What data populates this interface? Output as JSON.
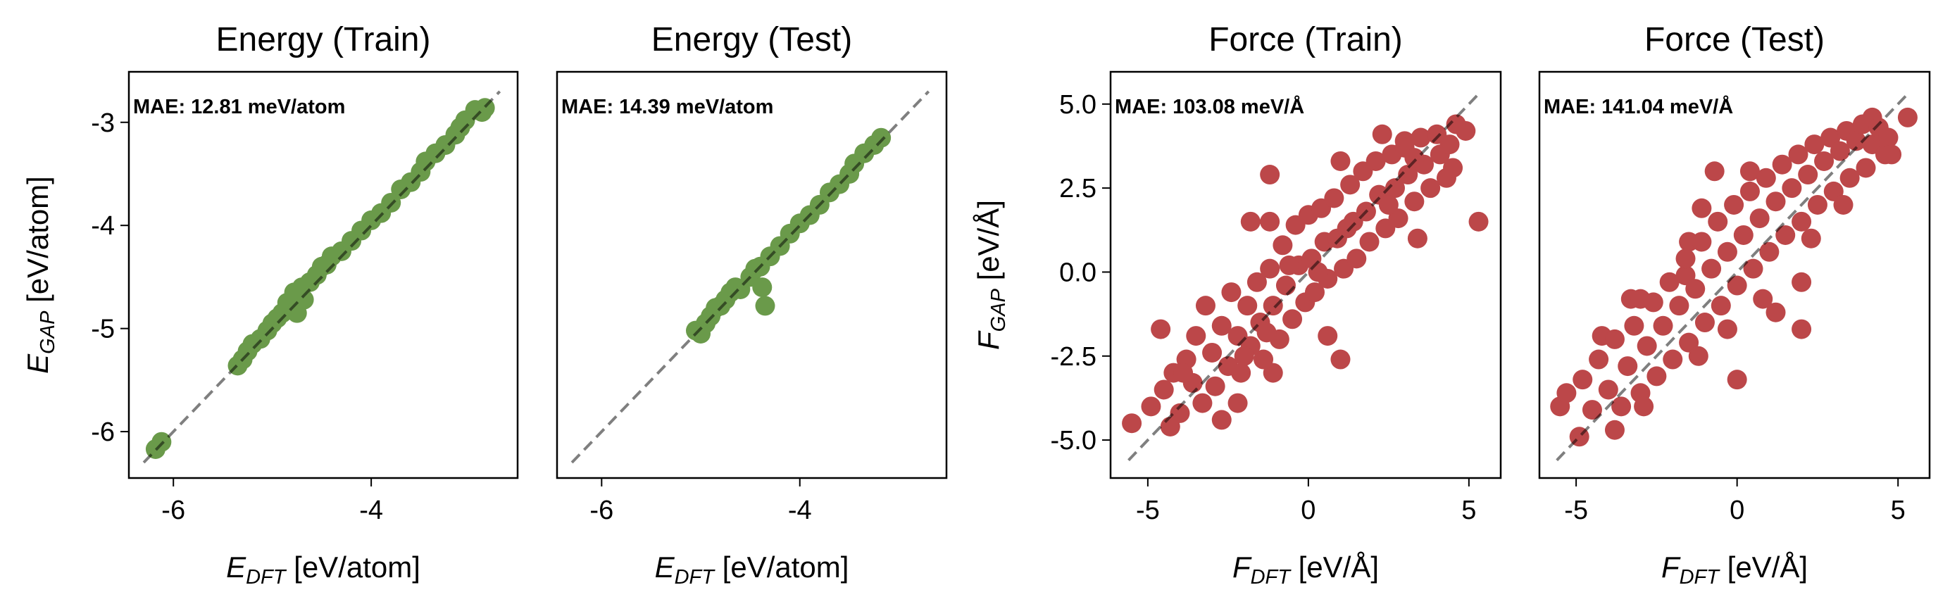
{
  "chart_data": [
    {
      "type": "scatter",
      "title": "Energy (Train)",
      "annotation": "MAE: 12.81 meV/atom",
      "xlabel": {
        "main": "E",
        "sub": "DFT",
        "unit": " [eV/atom]"
      },
      "ylabel": {
        "main": "E",
        "sub": "GAP",
        "unit": " [eV/atom]"
      },
      "xlim": [
        -6.45,
        -2.52
      ],
      "ylim": [
        -6.45,
        -2.51
      ],
      "xticks": [
        -6,
        -4
      ],
      "xtick_labels": [
        "-6",
        "-4"
      ],
      "yticks": [
        -6,
        -5,
        -4,
        -3
      ],
      "ytick_labels": [
        "-6",
        "-5",
        "-4",
        "-3"
      ],
      "show_yticks": true,
      "color": "#6a9a4a",
      "diagonal": [
        -6.3,
        -2.7
      ],
      "points": [
        [
          -6.18,
          -6.17
        ],
        [
          -6.12,
          -6.1
        ],
        [
          -5.35,
          -5.36
        ],
        [
          -5.3,
          -5.3
        ],
        [
          -5.25,
          -5.22
        ],
        [
          -5.2,
          -5.15
        ],
        [
          -5.12,
          -5.1
        ],
        [
          -5.05,
          -5.02
        ],
        [
          -5.0,
          -4.95
        ],
        [
          -4.95,
          -4.9
        ],
        [
          -4.9,
          -4.85
        ],
        [
          -4.85,
          -4.75
        ],
        [
          -4.8,
          -4.8
        ],
        [
          -4.78,
          -4.65
        ],
        [
          -4.75,
          -4.85
        ],
        [
          -4.7,
          -4.6
        ],
        [
          -4.68,
          -4.72
        ],
        [
          -4.62,
          -4.55
        ],
        [
          -4.55,
          -4.48
        ],
        [
          -4.5,
          -4.4
        ],
        [
          -4.45,
          -4.38
        ],
        [
          -4.4,
          -4.3
        ],
        [
          -4.3,
          -4.25
        ],
        [
          -4.2,
          -4.15
        ],
        [
          -4.1,
          -4.05
        ],
        [
          -4.0,
          -3.95
        ],
        [
          -3.9,
          -3.88
        ],
        [
          -3.8,
          -3.78
        ],
        [
          -3.7,
          -3.65
        ],
        [
          -3.6,
          -3.58
        ],
        [
          -3.5,
          -3.48
        ],
        [
          -3.45,
          -3.38
        ],
        [
          -3.35,
          -3.3
        ],
        [
          -3.25,
          -3.22
        ],
        [
          -3.15,
          -3.12
        ],
        [
          -3.1,
          -3.05
        ],
        [
          -3.05,
          -2.98
        ],
        [
          -2.95,
          -2.88
        ],
        [
          -2.88,
          -2.9
        ],
        [
          -2.85,
          -2.86
        ]
      ]
    },
    {
      "type": "scatter",
      "title": "Energy (Test)",
      "annotation": "MAE: 14.39 meV/atom",
      "xlabel": {
        "main": "E",
        "sub": "DFT",
        "unit": " [eV/atom]"
      },
      "ylabel": null,
      "xlim": [
        -6.45,
        -2.52
      ],
      "ylim": [
        -6.45,
        -2.51
      ],
      "xticks": [
        -6,
        -4
      ],
      "xtick_labels": [
        "-6",
        "-4"
      ],
      "yticks": [],
      "ytick_labels": [],
      "show_yticks": false,
      "color": "#6a9a4a",
      "diagonal": [
        -6.3,
        -2.7
      ],
      "points": [
        [
          -5.05,
          -5.02
        ],
        [
          -5.0,
          -5.05
        ],
        [
          -4.95,
          -4.95
        ],
        [
          -4.9,
          -4.88
        ],
        [
          -4.85,
          -4.8
        ],
        [
          -4.8,
          -4.78
        ],
        [
          -4.75,
          -4.72
        ],
        [
          -4.7,
          -4.65
        ],
        [
          -4.65,
          -4.6
        ],
        [
          -4.6,
          -4.62
        ],
        [
          -4.5,
          -4.5
        ],
        [
          -4.45,
          -4.42
        ],
        [
          -4.4,
          -4.4
        ],
        [
          -4.35,
          -4.78
        ],
        [
          -4.38,
          -4.6
        ],
        [
          -4.3,
          -4.3
        ],
        [
          -4.2,
          -4.2
        ],
        [
          -4.1,
          -4.08
        ],
        [
          -4.0,
          -3.98
        ],
        [
          -3.9,
          -3.9
        ],
        [
          -3.8,
          -3.8
        ],
        [
          -3.7,
          -3.68
        ],
        [
          -3.6,
          -3.6
        ],
        [
          -3.5,
          -3.5
        ],
        [
          -3.45,
          -3.4
        ],
        [
          -3.35,
          -3.3
        ],
        [
          -3.25,
          -3.22
        ],
        [
          -3.18,
          -3.15
        ]
      ]
    },
    {
      "type": "scatter",
      "title": "Force (Train)",
      "annotation": "MAE: 103.08 meV/Å",
      "xlabel": {
        "main": "F",
        "sub": "DFT",
        "unit": " [eV/Å]"
      },
      "ylabel": {
        "main": "F",
        "sub": "GAP",
        "unit": " [eV/Å]"
      },
      "xlim": [
        -6.16,
        5.99
      ],
      "ylim": [
        -6.13,
        5.96
      ],
      "xticks": [
        -5,
        0,
        5
      ],
      "xtick_labels": [
        "-5",
        "0",
        "5"
      ],
      "yticks": [
        -5,
        -2.5,
        0,
        2.5,
        5
      ],
      "ytick_labels": [
        "-5.0",
        "-2.5",
        "0.0",
        "2.5",
        "5.0"
      ],
      "show_yticks": true,
      "color": "#bc4749",
      "diagonal": [
        -5.6,
        5.3
      ],
      "points": [
        [
          -4.6,
          -1.7
        ],
        [
          -1.2,
          2.9
        ],
        [
          1.0,
          3.3
        ],
        [
          5.3,
          1.5
        ],
        [
          1.0,
          -2.6
        ],
        [
          -1.1,
          -3.0
        ],
        [
          -2.2,
          -3.9
        ],
        [
          -2.7,
          -4.4
        ],
        [
          -5.5,
          -4.5
        ],
        [
          -4.3,
          -4.6
        ],
        [
          4.9,
          4.2
        ],
        [
          4.6,
          4.4
        ],
        [
          2.3,
          4.1
        ],
        [
          3.0,
          3.9
        ],
        [
          -1.8,
          1.5
        ],
        [
          -1.2,
          1.5
        ],
        [
          3.4,
          1.0
        ],
        [
          0.6,
          -1.9
        ],
        [
          -4.9,
          -4.0
        ],
        [
          -4.5,
          -3.5
        ],
        [
          -4.2,
          -3.0
        ],
        [
          -4.0,
          -4.2
        ],
        [
          -3.8,
          -2.6
        ],
        [
          -3.6,
          -3.3
        ],
        [
          -3.5,
          -1.9
        ],
        [
          -3.3,
          -3.9
        ],
        [
          -3.2,
          -1.0
        ],
        [
          -3.0,
          -2.4
        ],
        [
          -2.9,
          -3.4
        ],
        [
          -2.7,
          -1.6
        ],
        [
          -2.5,
          -2.8
        ],
        [
          -2.4,
          -0.6
        ],
        [
          -2.2,
          -1.9
        ],
        [
          -2.1,
          -3.0
        ],
        [
          -1.9,
          -1.0
        ],
        [
          -1.8,
          -2.2
        ],
        [
          -1.6,
          -0.3
        ],
        [
          -1.5,
          -1.5
        ],
        [
          -1.4,
          -2.6
        ],
        [
          -1.2,
          0.1
        ],
        [
          -1.1,
          -1.0
        ],
        [
          -0.9,
          -2.0
        ],
        [
          -0.8,
          0.8
        ],
        [
          -0.7,
          -0.4
        ],
        [
          -0.5,
          -1.4
        ],
        [
          -0.4,
          1.4
        ],
        [
          -0.3,
          0.2
        ],
        [
          -0.1,
          -0.9
        ],
        [
          0.0,
          1.7
        ],
        [
          0.1,
          0.4
        ],
        [
          0.2,
          -0.6
        ],
        [
          0.4,
          1.9
        ],
        [
          0.5,
          0.9
        ],
        [
          0.6,
          -0.2
        ],
        [
          0.8,
          2.2
        ],
        [
          0.9,
          1.0
        ],
        [
          1.1,
          0.1
        ],
        [
          1.3,
          2.6
        ],
        [
          1.4,
          1.5
        ],
        [
          1.5,
          0.4
        ],
        [
          1.7,
          3.0
        ],
        [
          1.8,
          1.8
        ],
        [
          1.9,
          0.9
        ],
        [
          2.1,
          3.3
        ],
        [
          2.2,
          2.3
        ],
        [
          2.4,
          1.3
        ],
        [
          2.6,
          3.5
        ],
        [
          2.7,
          2.5
        ],
        [
          2.8,
          1.6
        ],
        [
          3.0,
          3.7
        ],
        [
          3.1,
          2.9
        ],
        [
          3.3,
          2.1
        ],
        [
          3.5,
          4.0
        ],
        [
          3.6,
          3.2
        ],
        [
          3.8,
          2.5
        ],
        [
          4.0,
          4.1
        ],
        [
          4.1,
          3.5
        ],
        [
          4.3,
          2.8
        ],
        [
          4.4,
          3.8
        ],
        [
          4.5,
          3.1
        ],
        [
          -3.9,
          -3.0
        ],
        [
          -2.0,
          -2.5
        ],
        [
          0.3,
          0.0
        ],
        [
          1.2,
          1.3
        ],
        [
          2.5,
          2.0
        ],
        [
          -0.6,
          0.2
        ],
        [
          -1.3,
          -1.8
        ],
        [
          3.3,
          3.4
        ]
      ]
    },
    {
      "type": "scatter",
      "title": "Force (Test)",
      "annotation": "MAE: 141.04 meV/Å",
      "xlabel": {
        "main": "F",
        "sub": "DFT",
        "unit": " [eV/Å]"
      },
      "ylabel": null,
      "xlim": [
        -6.14,
        5.98
      ],
      "ylim": [
        -6.13,
        5.96
      ],
      "xticks": [
        -5,
        0,
        5
      ],
      "xtick_labels": [
        "-5",
        "0",
        "5"
      ],
      "yticks": [],
      "ytick_labels": [],
      "show_yticks": false,
      "color": "#bc4749",
      "diagonal": [
        -5.6,
        5.3
      ],
      "points": [
        [
          -0.7,
          3.0
        ],
        [
          0.4,
          3.0
        ],
        [
          -1.1,
          1.9
        ],
        [
          -1.5,
          0.9
        ],
        [
          -3.3,
          -0.8
        ],
        [
          -3.0,
          -0.8
        ],
        [
          2.0,
          -0.3
        ],
        [
          2.0,
          -1.7
        ],
        [
          1.2,
          -1.2
        ],
        [
          0.0,
          -3.2
        ],
        [
          -4.2,
          -1.9
        ],
        [
          -5.5,
          -4.0
        ],
        [
          -4.9,
          -4.9
        ],
        [
          5.3,
          4.6
        ],
        [
          4.2,
          4.6
        ],
        [
          -1.6,
          -0.1
        ],
        [
          -0.3,
          -1.7
        ],
        [
          -3.8,
          -4.7
        ],
        [
          -5.3,
          -3.6
        ],
        [
          -4.8,
          -3.2
        ],
        [
          -4.5,
          -4.1
        ],
        [
          -4.3,
          -2.6
        ],
        [
          -4.0,
          -3.5
        ],
        [
          -3.8,
          -2.0
        ],
        [
          -3.6,
          -4.0
        ],
        [
          -3.4,
          -2.8
        ],
        [
          -3.2,
          -1.6
        ],
        [
          -3.0,
          -3.6
        ],
        [
          -2.8,
          -2.2
        ],
        [
          -2.6,
          -0.9
        ],
        [
          -2.5,
          -3.1
        ],
        [
          -2.3,
          -1.6
        ],
        [
          -2.1,
          -0.3
        ],
        [
          -2.0,
          -2.6
        ],
        [
          -1.8,
          -1.0
        ],
        [
          -1.6,
          0.4
        ],
        [
          -1.5,
          -2.1
        ],
        [
          -1.3,
          -0.5
        ],
        [
          -1.1,
          0.9
        ],
        [
          -1.0,
          -1.5
        ],
        [
          -0.8,
          0.1
        ],
        [
          -0.6,
          1.5
        ],
        [
          -0.5,
          -1.0
        ],
        [
          -0.3,
          0.6
        ],
        [
          -0.1,
          2.0
        ],
        [
          0.0,
          -0.4
        ],
        [
          0.2,
          1.1
        ],
        [
          0.4,
          2.4
        ],
        [
          0.5,
          0.1
        ],
        [
          0.7,
          1.6
        ],
        [
          0.9,
          2.8
        ],
        [
          1.0,
          0.6
        ],
        [
          1.2,
          2.1
        ],
        [
          1.4,
          3.2
        ],
        [
          1.5,
          1.1
        ],
        [
          1.7,
          2.5
        ],
        [
          1.9,
          3.5
        ],
        [
          2.0,
          1.5
        ],
        [
          2.2,
          2.9
        ],
        [
          2.4,
          3.8
        ],
        [
          2.5,
          2.0
        ],
        [
          2.7,
          3.3
        ],
        [
          2.9,
          4.0
        ],
        [
          3.0,
          2.4
        ],
        [
          3.2,
          3.6
        ],
        [
          3.4,
          4.2
        ],
        [
          3.5,
          2.8
        ],
        [
          3.7,
          3.9
        ],
        [
          3.9,
          4.4
        ],
        [
          4.0,
          3.1
        ],
        [
          4.2,
          3.8
        ],
        [
          4.4,
          4.3
        ],
        [
          4.6,
          3.5
        ],
        [
          4.7,
          4.0
        ],
        [
          4.8,
          3.5
        ],
        [
          -2.9,
          -4.0
        ],
        [
          -1.2,
          -2.5
        ],
        [
          0.8,
          -0.8
        ],
        [
          2.3,
          1.0
        ],
        [
          3.3,
          2.0
        ]
      ]
    }
  ]
}
